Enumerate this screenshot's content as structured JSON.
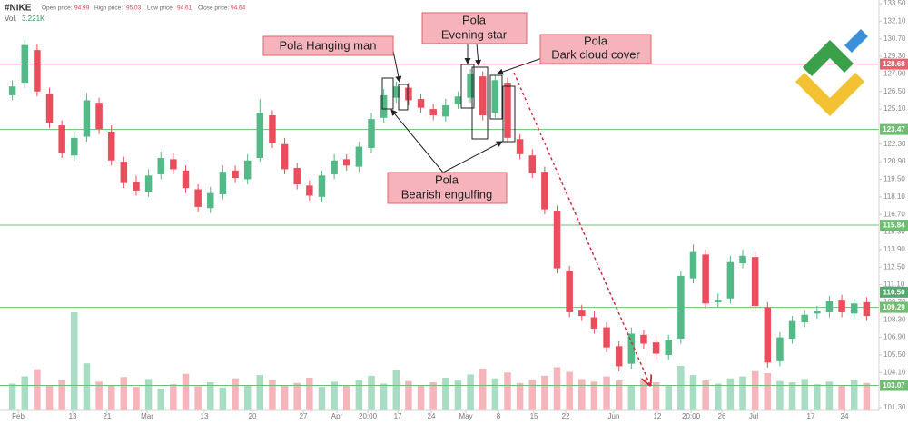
{
  "chart_data": {
    "type": "candlestick",
    "title": "#NIKE",
    "info": [
      {
        "label": "Open price:",
        "value": 94.99
      },
      {
        "label": "High price:",
        "value": 95.03
      },
      {
        "label": "Low price:",
        "value": 94.61
      },
      {
        "label": "Close price:",
        "value": 94.64
      }
    ],
    "volume_label": "Vol.",
    "volume_value": "3.221K",
    "up_color": "#53b987",
    "down_color": "#eb4d5c",
    "volume_up_color": "#a8dcc3",
    "volume_down_color": "#f5b5bb",
    "open": [
      126.2,
      127.2,
      129.8,
      126.3,
      123.8,
      121.4,
      122.9,
      125.6,
      123.3,
      120.9,
      119.3,
      118.5,
      119.9,
      121.1,
      120.2,
      118.7,
      117.2,
      118.3,
      120.2,
      119.5,
      121.2,
      124.6,
      122.3,
      120.4,
      119.0,
      118.1,
      119.9,
      121.1,
      120.5,
      122.0,
      124.4,
      126.0,
      126.8,
      125.9,
      125.1,
      124.5,
      125.5,
      126.0,
      127.7,
      124.8,
      127.2,
      122.7,
      121.4,
      120.1,
      117.0,
      112.2,
      109.1,
      108.5,
      107.7,
      106.2,
      104.8,
      107.1,
      106.5,
      105.5,
      106.8,
      111.6,
      113.5,
      109.7,
      110.0,
      112.8,
      113.3,
      109.3,
      105.0,
      106.8,
      108.1,
      108.8,
      108.9,
      109.9,
      108.8,
      109.7
    ],
    "high": [
      127.4,
      130.6,
      130.3,
      126.8,
      124.2,
      123.3,
      126.4,
      126.0,
      123.8,
      121.3,
      119.8,
      120.3,
      121.7,
      121.6,
      120.6,
      119.1,
      118.9,
      120.6,
      120.6,
      121.5,
      125.9,
      125.0,
      122.8,
      120.8,
      119.4,
      120.2,
      121.5,
      121.5,
      122.5,
      124.8,
      126.7,
      127.3,
      127.2,
      126.3,
      125.5,
      125.9,
      126.5,
      128.3,
      128.1,
      127.8,
      127.6,
      123.1,
      121.9,
      120.5,
      117.4,
      112.6,
      109.5,
      109.0,
      108.1,
      106.6,
      107.7,
      107.5,
      106.9,
      107.1,
      112.2,
      114.3,
      113.9,
      110.4,
      113.4,
      113.9,
      113.7,
      109.7,
      107.3,
      108.6,
      109.1,
      109.4,
      110.2,
      110.3,
      110.0,
      110.1
    ],
    "low": [
      125.8,
      126.8,
      126.1,
      123.6,
      121.2,
      121.0,
      122.5,
      123.1,
      120.6,
      118.8,
      118.2,
      118.1,
      119.5,
      119.9,
      118.4,
      116.9,
      116.8,
      117.9,
      119.2,
      119.1,
      120.9,
      122.0,
      119.9,
      118.7,
      117.8,
      117.7,
      119.5,
      120.2,
      120.1,
      121.6,
      124.0,
      125.6,
      125.4,
      124.8,
      124.2,
      124.1,
      125.1,
      125.6,
      124.2,
      124.4,
      122.4,
      121.1,
      119.6,
      116.7,
      112.0,
      108.5,
      108.2,
      107.2,
      105.7,
      104.2,
      104.4,
      106.0,
      105.2,
      105.1,
      106.4,
      111.2,
      109.2,
      109.3,
      109.6,
      112.4,
      109.0,
      104.5,
      104.6,
      106.4,
      107.7,
      108.4,
      108.5,
      108.5,
      108.4,
      108.2
    ],
    "close": [
      126.9,
      130.2,
      126.5,
      124.0,
      121.6,
      122.8,
      125.8,
      123.5,
      121.0,
      119.2,
      118.6,
      119.8,
      121.2,
      120.3,
      118.8,
      117.3,
      118.4,
      120.1,
      119.6,
      121.0,
      124.8,
      122.4,
      120.3,
      119.1,
      118.2,
      119.8,
      121.0,
      120.6,
      122.1,
      124.3,
      126.2,
      126.9,
      125.8,
      125.2,
      124.6,
      125.4,
      126.1,
      127.9,
      124.6,
      127.4,
      122.8,
      121.5,
      120.0,
      117.1,
      112.4,
      108.9,
      108.6,
      107.6,
      106.1,
      104.6,
      107.2,
      106.4,
      105.6,
      106.7,
      111.8,
      113.7,
      109.6,
      109.9,
      112.9,
      113.4,
      109.4,
      104.9,
      106.9,
      108.2,
      108.7,
      109.0,
      109.8,
      108.9,
      109.6,
      108.6
    ],
    "volume": [
      4.1,
      5.2,
      6.3,
      3.8,
      4.6,
      15,
      7.2,
      4.4,
      3.9,
      5.1,
      3.6,
      4.8,
      3.3,
      4.0,
      5.6,
      3.7,
      4.3,
      3.5,
      4.9,
      3.9,
      5.4,
      4.6,
      3.8,
      4.2,
      5.0,
      3.6,
      4.4,
      3.9,
      4.7,
      5.3,
      4.1,
      6.2,
      4.5,
      3.9,
      4.3,
      5.0,
      4.6,
      5.5,
      6.4,
      4.9,
      5.8,
      4.2,
      4.7,
      5.3,
      6.6,
      5.9,
      4.8,
      4.4,
      5.2,
      4.6,
      3.9,
      4.8,
      4.3,
      3.8,
      6.8,
      5.4,
      4.6,
      4.1,
      4.9,
      5.2,
      6.0,
      5.7,
      4.5,
      4.3,
      4.8,
      4.0,
      4.4,
      3.9,
      4.6,
      4.2
    ],
    "xlim": [
      -1,
      70
    ],
    "xticks": [
      {
        "value": 0.47,
        "label": "Feb"
      },
      {
        "value": 4.87,
        "label": "13"
      },
      {
        "value": 7.65,
        "label": "21"
      },
      {
        "value": 10.88,
        "label": "Mar"
      },
      {
        "value": 15.5,
        "label": "13"
      },
      {
        "value": 19.39,
        "label": "20"
      },
      {
        "value": 23.5,
        "label": "27"
      },
      {
        "value": 26.21,
        "label": "Apr"
      },
      {
        "value": 28.71,
        "label": "20:00"
      },
      {
        "value": 31.13,
        "label": "17"
      },
      {
        "value": 33.84,
        "label": "24"
      },
      {
        "value": 36.63,
        "label": "May"
      },
      {
        "value": 39.27,
        "label": "8"
      },
      {
        "value": 42.13,
        "label": "15"
      },
      {
        "value": 44.7,
        "label": "22"
      },
      {
        "value": 48.58,
        "label": "Jun"
      },
      {
        "value": 52.1,
        "label": "12"
      },
      {
        "value": 54.82,
        "label": "20:00"
      },
      {
        "value": 57.31,
        "label": "26"
      },
      {
        "value": 59.88,
        "label": "Jul"
      },
      {
        "value": 64.5,
        "label": "17"
      },
      {
        "value": 67.21,
        "label": "24"
      }
    ],
    "ylim": [
      101.3,
      133.5
    ],
    "yticks": [
      {
        "value": 133.5,
        "label": "133.50"
      },
      {
        "value": 132.1,
        "label": "132.10"
      },
      {
        "value": 130.7,
        "label": "130.70"
      },
      {
        "value": 129.3,
        "label": "129.30"
      },
      {
        "value": 127.9,
        "label": "127.90"
      },
      {
        "value": 126.5,
        "label": "126.50"
      },
      {
        "value": 125.1,
        "label": "125.10"
      },
      {
        "value": 122.3,
        "label": "122.30"
      },
      {
        "value": 120.9,
        "label": "120.90"
      },
      {
        "value": 119.5,
        "label": "119.50"
      },
      {
        "value": 118.1,
        "label": "118.10"
      },
      {
        "value": 116.7,
        "label": "116.70"
      },
      {
        "value": 115.3,
        "label": "115.30"
      },
      {
        "value": 113.9,
        "label": "113.90"
      },
      {
        "value": 112.5,
        "label": "112.50"
      },
      {
        "value": 111.1,
        "label": "111.10"
      },
      {
        "value": 109.7,
        "label": "109.70"
      },
      {
        "value": 108.3,
        "label": "108.30"
      },
      {
        "value": 106.9,
        "label": "106.90"
      },
      {
        "value": 105.5,
        "label": "105.50"
      },
      {
        "value": 104.1,
        "label": "104.10"
      },
      {
        "value": 101.3,
        "label": "101.30"
      }
    ],
    "levels": [
      {
        "value": 128.68,
        "color": "#e5626e",
        "line": true
      },
      {
        "value": 123.47,
        "color": "#6fbf73",
        "line": true
      },
      {
        "value": 115.84,
        "color": "#6fbf73",
        "line": true
      },
      {
        "value": 110.5,
        "label": "110.50",
        "color": "#53a86f",
        "line": false
      },
      {
        "value": 109.29,
        "color": "#6fbf73",
        "line": true
      },
      {
        "value": 103.07,
        "color": "#6fbf73",
        "line": true
      }
    ],
    "annotations": [
      {
        "lines": [
          "Pola Hanging man"
        ]
      },
      {
        "lines": [
          "Pola",
          "Evening star"
        ]
      },
      {
        "lines": [
          "Pola",
          "Dark cloud cover"
        ]
      },
      {
        "lines": [
          "Pola",
          "Bearish engulfing"
        ]
      }
    ]
  }
}
